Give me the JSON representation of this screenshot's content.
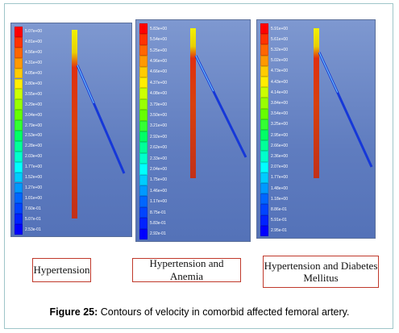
{
  "panels": [
    {
      "caption": "Hypertension",
      "scale_values": [
        "5.07e+00",
        "4.81e+00",
        "4.56e+00",
        "4.31e+00",
        "4.05e+00",
        "3.80e+00",
        "3.55e+00",
        "3.29e+00",
        "3.04e+00",
        "2.79e+00",
        "2.53e+00",
        "2.28e+00",
        "2.03e+00",
        "1.77e+00",
        "1.52e+00",
        "1.27e+00",
        "1.01e+00",
        "7.60e-01",
        "5.07e-01",
        "2.53e-01"
      ]
    },
    {
      "caption": "Hypertension and Anemia",
      "scale_values": [
        "5.83e+00",
        "5.54e+00",
        "5.25e+00",
        "4.96e+00",
        "4.66e+00",
        "4.37e+00",
        "4.08e+00",
        "3.79e+00",
        "3.50e+00",
        "3.21e+00",
        "2.92e+00",
        "2.62e+00",
        "2.33e+00",
        "2.04e+00",
        "1.75e+00",
        "1.46e+00",
        "1.17e+00",
        "8.75e-01",
        "5.83e-01",
        "2.92e-01"
      ]
    },
    {
      "caption": "Hypertension and Diabetes Mellitus",
      "scale_values": [
        "5.91e+00",
        "5.61e+00",
        "5.32e+00",
        "5.02e+00",
        "4.73e+00",
        "4.43e+00",
        "4.14e+00",
        "3.84e+00",
        "3.54e+00",
        "3.25e+00",
        "2.95e+00",
        "2.66e+00",
        "2.36e+00",
        "2.07e+00",
        "1.77e+00",
        "1.48e+00",
        "1.18e+00",
        "8.86e-01",
        "5.91e-01",
        "2.95e-01"
      ]
    }
  ],
  "scale_colors": [
    "#ff0000",
    "#ff3300",
    "#ff6600",
    "#ff9900",
    "#ffcc00",
    "#ffee00",
    "#ccff00",
    "#99ff00",
    "#66ff00",
    "#33ff33",
    "#00ff66",
    "#00ff99",
    "#00ffcc",
    "#00ffff",
    "#00ccff",
    "#0099ff",
    "#0066ff",
    "#0044ff",
    "#0022ff",
    "#0000ff"
  ],
  "caption": {
    "prefix": "Figure 25:",
    "text": " Contours of velocity in comorbid affected femoral artery."
  },
  "colors": {
    "caption_border": "#c0392b",
    "frame_border": "#9fc6c9"
  }
}
